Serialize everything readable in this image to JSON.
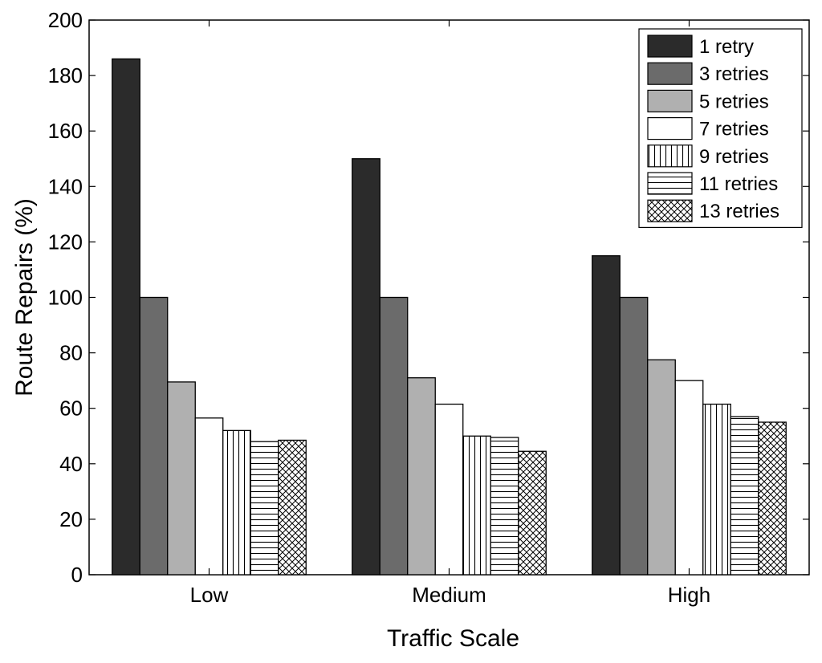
{
  "chart_data": {
    "type": "bar",
    "title": "",
    "xlabel": "Traffic Scale",
    "ylabel": "Route Repairs (%)",
    "ylim": [
      0,
      200
    ],
    "yticks": [
      0,
      20,
      40,
      60,
      80,
      100,
      120,
      140,
      160,
      180,
      200
    ],
    "categories": [
      "Low",
      "Medium",
      "High"
    ],
    "legend_position": "top-right",
    "series": [
      {
        "name": "1 retry",
        "values": [
          186,
          150,
          115
        ],
        "fill": "#2b2b2b",
        "pattern": "solid"
      },
      {
        "name": "3 retries",
        "values": [
          100,
          100,
          100
        ],
        "fill": "#6b6b6b",
        "pattern": "solid"
      },
      {
        "name": "5 retries",
        "values": [
          69.5,
          71,
          77.5
        ],
        "fill": "#b0b0b0",
        "pattern": "solid"
      },
      {
        "name": "7 retries",
        "values": [
          56.5,
          61.5,
          70
        ],
        "fill": "#ffffff",
        "pattern": "solid"
      },
      {
        "name": "9 retries",
        "values": [
          52,
          50,
          61.5
        ],
        "fill": "#ffffff",
        "pattern": "vertical"
      },
      {
        "name": "11 retries",
        "values": [
          48,
          49.5,
          57
        ],
        "fill": "#ffffff",
        "pattern": "horizontal"
      },
      {
        "name": "13 retries",
        "values": [
          48.5,
          44.5,
          55
        ],
        "fill": "#ffffff",
        "pattern": "crosshatch"
      }
    ]
  }
}
